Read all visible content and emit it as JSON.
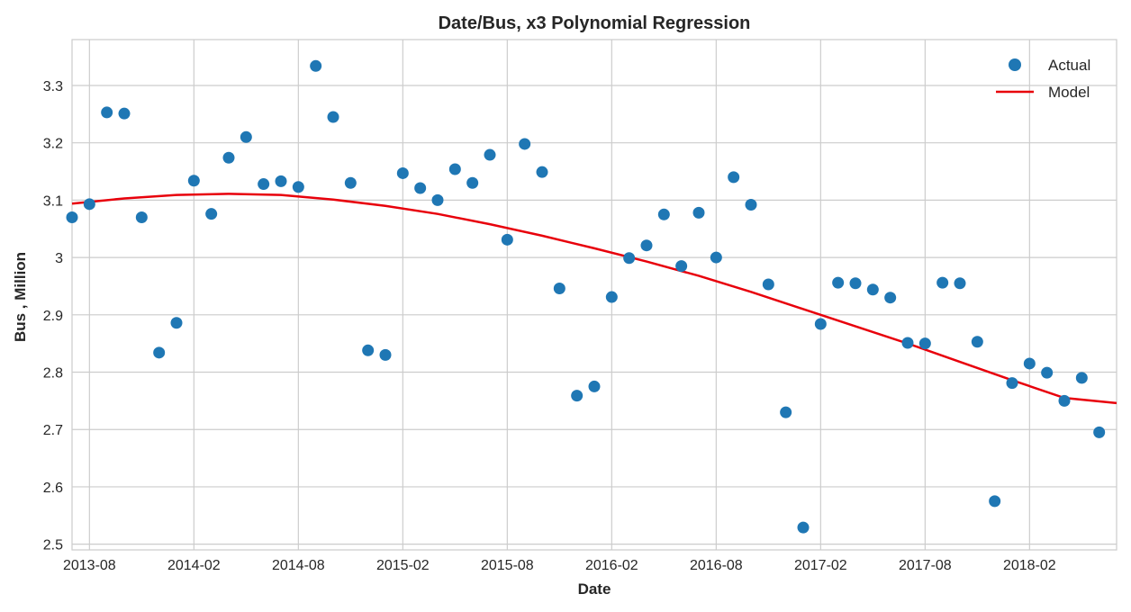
{
  "chart_data": {
    "type": "scatter",
    "title": "Date/Bus, x3 Polynomial Regression",
    "xlabel": "Date",
    "ylabel": "Bus , Million",
    "xlim": [
      "2013-07",
      "2018-07"
    ],
    "ylim": [
      2.49,
      3.38
    ],
    "x_ticks": [
      "2013-08",
      "2014-02",
      "2014-08",
      "2015-02",
      "2015-08",
      "2016-02",
      "2016-08",
      "2017-02",
      "2017-08",
      "2018-02"
    ],
    "y_ticks": [
      "2.5",
      "2.6",
      "2.7",
      "2.8",
      "2.9",
      "3",
      "3.1",
      "3.2",
      "3.3"
    ],
    "grid": true,
    "legend_position": "top-right",
    "colors": {
      "actual": "#1f77b4",
      "model": "#e8000b"
    },
    "series": [
      {
        "name": "Actual",
        "kind": "scatter",
        "x": [
          "2013-07",
          "2013-08",
          "2013-09",
          "2013-10",
          "2013-11",
          "2013-12",
          "2014-01",
          "2014-02",
          "2014-03",
          "2014-04",
          "2014-05",
          "2014-06",
          "2014-07",
          "2014-08",
          "2014-09",
          "2014-10",
          "2014-11",
          "2014-12",
          "2015-01",
          "2015-02",
          "2015-03",
          "2015-04",
          "2015-05",
          "2015-06",
          "2015-07",
          "2015-08",
          "2015-09",
          "2015-10",
          "2015-11",
          "2015-12",
          "2016-01",
          "2016-02",
          "2016-03",
          "2016-04",
          "2016-05",
          "2016-06",
          "2016-07",
          "2016-08",
          "2016-09",
          "2016-10",
          "2016-11",
          "2016-12",
          "2017-01",
          "2017-02",
          "2017-03",
          "2017-04",
          "2017-05",
          "2017-06",
          "2017-07",
          "2017-08",
          "2017-09",
          "2017-10",
          "2017-11",
          "2017-12",
          "2018-01",
          "2018-02",
          "2018-03",
          "2018-04",
          "2018-05",
          "2018-06"
        ],
        "y": [
          3.07,
          3.093,
          3.253,
          3.251,
          3.07,
          2.834,
          2.886,
          3.134,
          3.076,
          3.174,
          3.21,
          3.128,
          3.133,
          3.123,
          3.334,
          3.245,
          3.13,
          2.838,
          2.83,
          3.147,
          3.121,
          3.1,
          3.154,
          3.13,
          3.179,
          3.031,
          3.198,
          3.149,
          2.946,
          2.759,
          2.775,
          2.931,
          2.999,
          3.021,
          3.075,
          2.985,
          3.078,
          3.0,
          3.14,
          3.092,
          2.953,
          2.73,
          2.529,
          2.884,
          2.956,
          2.955,
          2.944,
          2.93,
          2.851,
          2.85,
          2.956,
          2.955,
          2.853,
          2.575,
          2.781,
          2.815,
          2.799,
          2.75,
          2.79,
          2.695
        ]
      },
      {
        "name": "Model",
        "kind": "line",
        "x": [
          "2013-07",
          "2013-10",
          "2014-01",
          "2014-04",
          "2014-07",
          "2014-10",
          "2015-01",
          "2015-04",
          "2015-07",
          "2015-10",
          "2016-01",
          "2016-04",
          "2016-07",
          "2016-10",
          "2017-01",
          "2017-04",
          "2017-07",
          "2017-10",
          "2018-01",
          "2018-04",
          "2018-07"
        ],
        "y": [
          3.094,
          3.103,
          3.109,
          3.111,
          3.109,
          3.101,
          3.09,
          3.076,
          3.058,
          3.038,
          3.016,
          2.993,
          2.968,
          2.94,
          2.91,
          2.88,
          2.85,
          2.818,
          2.786,
          2.755,
          2.746
        ]
      }
    ]
  }
}
